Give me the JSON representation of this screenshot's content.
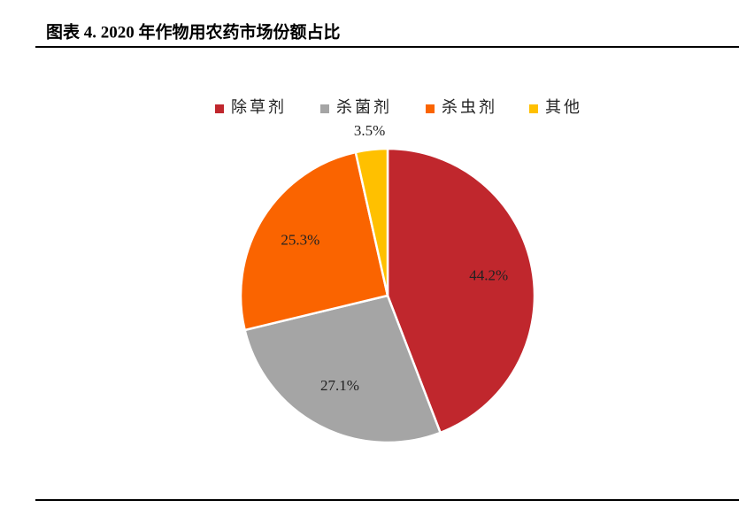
{
  "chart_data": {
    "type": "pie",
    "title": "图表 4.  2020 年作物用农药市场份额占比",
    "categories": [
      "除草剂",
      "杀菌剂",
      "杀虫剂",
      "其他"
    ],
    "values": [
      44.2,
      27.1,
      25.3,
      3.5
    ],
    "value_labels": [
      "44.2%",
      "27.1%",
      "25.3%",
      "3.5%"
    ],
    "colors": [
      "#C0272D",
      "#A5A5A5",
      "#FA6400",
      "#FFC000"
    ],
    "legend": "top"
  }
}
